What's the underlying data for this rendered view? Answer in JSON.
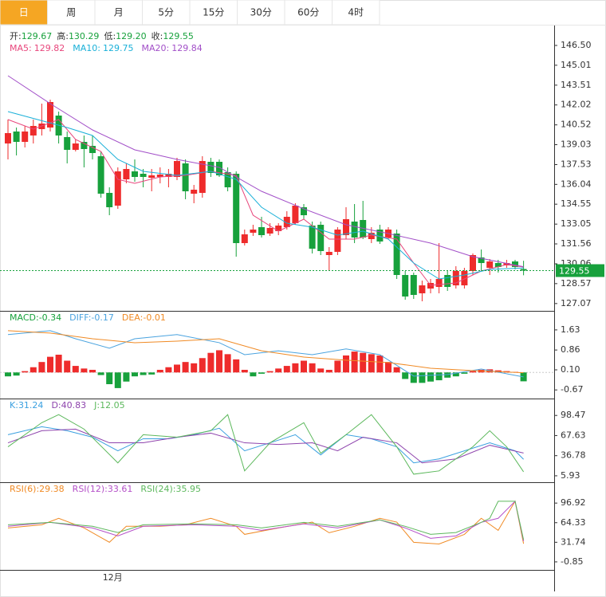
{
  "tabs": [
    "日",
    "周",
    "月",
    "5分",
    "15分",
    "30分",
    "60分",
    "4时"
  ],
  "active_tab": 0,
  "legend_sep": ":",
  "chart_data": [
    {
      "type": "candlestick",
      "categories": [
        null,
        null,
        null,
        null,
        null,
        null,
        null,
        null,
        null,
        null,
        null,
        null,
        "12月",
        null,
        null,
        null,
        null,
        null,
        null,
        null,
        null,
        null,
        null,
        null,
        null,
        null,
        null,
        null,
        null,
        null,
        null,
        null,
        null,
        null,
        null,
        null,
        null,
        null,
        null,
        null,
        null,
        null,
        null,
        null,
        null,
        null,
        null,
        null,
        null,
        null,
        null,
        null,
        null,
        null,
        null,
        null,
        null,
        null,
        null,
        null,
        null,
        null
      ],
      "open": [
        139.12,
        140.02,
        139.24,
        139.72,
        140.2,
        140.32,
        141.22,
        139.6,
        138.64,
        139.24,
        138.94,
        138.16,
        135.4,
        134.44,
        136.42,
        137.02,
        136.84,
        136.54,
        136.6,
        136.6,
        136.6,
        137.62,
        135.34,
        135.4,
        137.74,
        137.74,
        136.96,
        136.84,
        131.62,
        132.4,
        132.82,
        132.34,
        132.52,
        132.82,
        133.12,
        134.32,
        132.94,
        133.0,
        130.72,
        130.96,
        132.22,
        133.24,
        133.36,
        131.92,
        132.64,
        132.04,
        132.34,
        129.22,
        129.22,
        127.84,
        128.2,
        128.32,
        129.22,
        128.44,
        128.44,
        129.52,
        130.54,
        129.76,
        130.12,
        129.94,
        130.24,
        129.67
      ],
      "high": [
        140.92,
        140.32,
        140.44,
        140.92,
        142.12,
        142.42,
        141.52,
        140.02,
        139.42,
        139.72,
        139.72,
        138.52,
        135.82,
        137.32,
        137.62,
        137.92,
        137.2,
        137.2,
        137.32,
        137.2,
        138.04,
        137.92,
        136.0,
        138.16,
        138.04,
        137.92,
        137.32,
        137.02,
        132.64,
        133.0,
        133.6,
        133.12,
        133.12,
        134.02,
        134.62,
        134.56,
        133.24,
        133.24,
        131.32,
        132.82,
        134.32,
        134.56,
        134.8,
        132.82,
        133.0,
        132.82,
        132.64,
        129.52,
        129.4,
        128.8,
        128.92,
        131.62,
        129.52,
        129.88,
        129.76,
        130.84,
        131.14,
        130.42,
        130.36,
        130.36,
        130.36,
        130.29
      ],
      "low": [
        137.92,
        138.22,
        138.82,
        139.12,
        139.72,
        140.02,
        139.12,
        137.62,
        138.52,
        137.32,
        137.92,
        135.04,
        133.72,
        134.2,
        136.12,
        136.24,
        135.82,
        135.52,
        136.12,
        135.82,
        136.36,
        134.92,
        134.62,
        135.04,
        136.6,
        136.6,
        135.52,
        130.6,
        131.44,
        132.16,
        132.04,
        132.16,
        132.22,
        132.64,
        133.0,
        133.42,
        130.84,
        130.72,
        129.52,
        130.72,
        131.92,
        131.62,
        131.92,
        131.62,
        131.56,
        131.92,
        128.92,
        127.36,
        127.42,
        127.24,
        127.84,
        127.84,
        128.02,
        128.2,
        128.2,
        129.22,
        129.52,
        129.22,
        129.4,
        129.76,
        129.64,
        129.2
      ],
      "close": [
        139.9,
        139.24,
        140.02,
        140.44,
        140.62,
        142.24,
        139.72,
        138.64,
        139.12,
        138.7,
        138.4,
        135.34,
        134.32,
        137.02,
        137.2,
        136.6,
        136.6,
        136.72,
        136.78,
        136.84,
        137.8,
        135.52,
        135.64,
        137.8,
        136.9,
        136.72,
        135.82,
        131.62,
        132.28,
        132.64,
        132.22,
        132.76,
        132.94,
        133.6,
        134.44,
        133.72,
        131.2,
        131.02,
        130.96,
        132.64,
        133.42,
        132.04,
        132.04,
        132.4,
        131.74,
        132.64,
        129.22,
        127.6,
        127.72,
        128.44,
        128.62,
        128.92,
        128.32,
        129.52,
        129.52,
        130.72,
        130.12,
        130.24,
        129.82,
        130.12,
        129.82,
        129.55
      ],
      "ohlc_names": [
        "开",
        "高",
        "低",
        "收"
      ],
      "low_label": "129.20",
      "up_color": "#ee2b2b",
      "down_color": "#17a13c",
      "last_price_color": "#17a13c",
      "ylim": [
        126.52,
        147.82
      ],
      "yticks": [
        {
          "value": 146.5,
          "label": "146.50"
        },
        145.01,
        143.51,
        142.02,
        140.52,
        139.03,
        137.53,
        136.04,
        134.55,
        133.05,
        131.56,
        130.06,
        128.57,
        127.07
      ],
      "lines": [
        {
          "name": "MA5",
          "color": "#e8467c",
          "x": [
            0,
            3,
            6,
            8,
            11,
            13,
            15,
            18,
            21,
            24,
            27,
            29,
            32,
            35,
            38,
            41,
            43,
            46,
            48,
            50,
            53,
            56,
            59,
            61
          ],
          "values": [
            140.92,
            140.2,
            140.92,
            139.42,
            138.52,
            136.42,
            136.12,
            136.6,
            136.72,
            137.02,
            136.72,
            133.72,
            132.52,
            133.42,
            131.92,
            131.92,
            132.22,
            131.92,
            130.12,
            128.44,
            128.62,
            129.52,
            130.0,
            129.82
          ]
        },
        {
          "name": "MA10",
          "color": "#1ab0d8",
          "x": [
            0,
            7,
            10,
            13,
            16,
            20,
            24,
            27,
            30,
            33,
            36,
            39,
            42,
            45,
            48,
            51,
            54,
            57,
            61
          ],
          "values": [
            141.52,
            140.32,
            139.72,
            137.92,
            137.02,
            136.72,
            137.02,
            136.42,
            134.32,
            133.12,
            132.82,
            132.22,
            132.52,
            131.92,
            130.12,
            128.92,
            129.22,
            129.64,
            129.75
          ]
        },
        {
          "name": "MA20",
          "color": "#a24fc8",
          "x": [
            0,
            5,
            10,
            15,
            20,
            25,
            30,
            35,
            40,
            45,
            50,
            55,
            61
          ],
          "values": [
            144.22,
            142.12,
            140.14,
            138.64,
            137.92,
            137.32,
            135.52,
            134.2,
            133.0,
            132.34,
            131.62,
            130.6,
            129.84
          ]
        }
      ]
    },
    {
      "type": "macd",
      "bars": {
        "name": "MACD",
        "color": "#17a13c",
        "up_color": "#ee2b2b",
        "down_color": "#17a13c",
        "values": [
          -0.15,
          -0.12,
          0.05,
          0.2,
          0.4,
          0.6,
          0.68,
          0.45,
          0.25,
          0.15,
          0.1,
          -0.1,
          -0.45,
          -0.6,
          -0.35,
          -0.15,
          -0.1,
          -0.08,
          0.1,
          0.2,
          0.3,
          0.4,
          0.35,
          0.55,
          0.75,
          0.85,
          0.7,
          0.5,
          0.1,
          -0.15,
          -0.05,
          0.05,
          0.15,
          0.25,
          0.35,
          0.45,
          0.35,
          0.15,
          0.1,
          0.45,
          0.65,
          0.8,
          0.75,
          0.7,
          0.65,
          0.4,
          0.2,
          -0.25,
          -0.4,
          -0.4,
          -0.35,
          -0.3,
          -0.2,
          -0.15,
          -0.05,
          0.05,
          0.1,
          0.12,
          0.08,
          0.05,
          0.02,
          -0.34
        ]
      },
      "ylim": [
        -1.0,
        2.36
      ],
      "yticks": [
        1.63,
        0.86,
        {
          "value": 0.1,
          "label": "0.10"
        },
        -0.67
      ],
      "lines": [
        {
          "name": "DIFF",
          "color": "#4aa3df",
          "x": [
            0,
            5,
            8,
            12,
            15,
            20,
            25,
            28,
            32,
            36,
            40,
            44,
            48,
            52,
            56,
            61
          ],
          "values": [
            1.45,
            1.6,
            1.29,
            0.93,
            1.29,
            1.45,
            1.14,
            0.68,
            0.83,
            0.68,
            0.9,
            0.68,
            -0.14,
            -0.08,
            0.13,
            -0.17
          ]
        },
        {
          "name": "DEA",
          "color": "#f08a24",
          "x": [
            0,
            5,
            10,
            15,
            20,
            25,
            30,
            35,
            40,
            45,
            50,
            55,
            61
          ],
          "values": [
            1.6,
            1.51,
            1.29,
            1.14,
            1.2,
            1.29,
            0.83,
            0.59,
            0.47,
            0.38,
            0.16,
            0.07,
            -0.01
          ]
        }
      ]
    },
    {
      "type": "line",
      "ylim": [
        -3.94,
        124.4
      ],
      "yticks": [
        98.47,
        67.63,
        36.78,
        5.93
      ],
      "lines": [
        {
          "name": "K",
          "color": "#3aa0e0",
          "x": [
            0,
            4,
            7,
            10,
            13,
            16,
            19,
            22,
            25,
            28,
            31,
            34,
            37,
            40,
            43,
            46,
            48,
            51,
            54,
            57,
            60,
            61
          ],
          "values": [
            68.9,
            81.2,
            75.0,
            65.1,
            44.2,
            62.7,
            62.7,
            68.9,
            78.8,
            44.2,
            56.5,
            68.9,
            38.0,
            68.9,
            62.7,
            50.4,
            25.7,
            31.8,
            44.2,
            56.5,
            44.2,
            31.24
          ]
        },
        {
          "name": "D",
          "color": "#8e44ad",
          "x": [
            0,
            4,
            8,
            12,
            16,
            20,
            24,
            28,
            32,
            36,
            39,
            42,
            46,
            49,
            53,
            57,
            61
          ],
          "values": [
            56.5,
            75.0,
            77.5,
            56.5,
            56.5,
            65.1,
            71.3,
            56.5,
            54.0,
            56.5,
            44.2,
            65.1,
            56.5,
            25.7,
            31.8,
            52.8,
            40.83
          ]
        },
        {
          "name": "J",
          "color": "#5cb85c",
          "x": [
            0,
            4,
            6,
            9,
            13,
            16,
            20,
            24,
            26,
            28,
            31,
            35,
            37,
            40,
            43,
            46,
            48,
            51,
            55,
            57,
            59,
            61
          ],
          "values": [
            50.4,
            87.4,
            99.7,
            77.5,
            25.7,
            68.9,
            65.1,
            75.0,
            99.7,
            13.4,
            56.5,
            87.4,
            40.5,
            68.9,
            99.7,
            50.4,
            8.4,
            13.4,
            50.4,
            75.0,
            50.4,
            12.05
          ]
        }
      ]
    },
    {
      "type": "line",
      "ylim": [
        -14.2,
        131.6
      ],
      "yticks": [
        96.92,
        64.33,
        31.74,
        -0.85
      ],
      "lines": [
        {
          "name": "RSI(6)",
          "color": "#f08a24",
          "x": [
            0,
            4,
            6,
            9,
            12,
            14,
            18,
            21,
            24,
            27,
            28,
            32,
            36,
            38,
            41,
            44,
            46,
            48,
            51,
            54,
            56,
            58,
            60,
            61
          ],
          "values": [
            55.6,
            60.9,
            71.6,
            55.6,
            31.7,
            58.3,
            58.3,
            60.9,
            71.6,
            58.3,
            44.9,
            55.6,
            65.3,
            47.6,
            58.3,
            71.6,
            65.3,
            31.7,
            28.9,
            44.9,
            71.6,
            51.6,
            100,
            29.38
          ]
        },
        {
          "name": "RSI(12)",
          "color": "#b44fc8",
          "x": [
            0,
            5,
            10,
            13,
            16,
            22,
            27,
            30,
            35,
            39,
            44,
            47,
            50,
            53,
            56,
            58,
            60,
            61
          ],
          "values": [
            58.3,
            64.9,
            55.6,
            42.3,
            58.3,
            60.9,
            58.3,
            51.6,
            62.3,
            55.6,
            68.9,
            55.6,
            38.3,
            42.3,
            64.9,
            71.6,
            100,
            33.61
          ]
        },
        {
          "name": "RSI(24)",
          "color": "#5cb85c",
          "x": [
            0,
            5,
            10,
            13,
            16,
            22,
            27,
            30,
            35,
            39,
            44,
            47,
            50,
            53,
            56,
            57,
            58,
            60,
            61
          ],
          "values": [
            60.9,
            64.9,
            58.3,
            48.0,
            60.9,
            62.3,
            60.9,
            55.6,
            64.9,
            58.3,
            68.9,
            58.3,
            44.9,
            48.0,
            64.9,
            71.6,
            100,
            100,
            35.95
          ]
        }
      ]
    }
  ]
}
